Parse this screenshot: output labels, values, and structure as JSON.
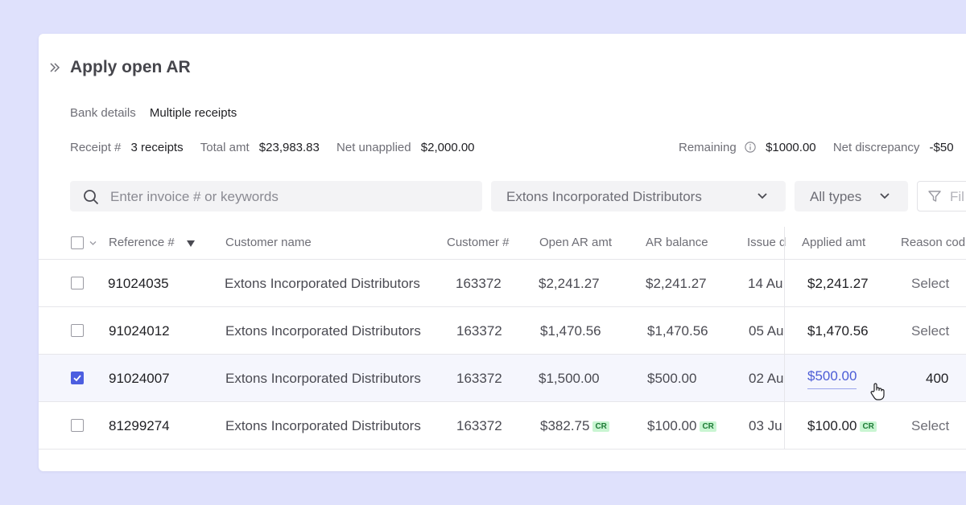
{
  "title": "Apply open AR",
  "bank": {
    "label": "Bank details",
    "value": "Multiple receipts"
  },
  "summary": {
    "receipt_label": "Receipt #",
    "receipt_value": "3 receipts",
    "total_label": "Total amt",
    "total_value": "$23,983.83",
    "unapplied_label": "Net unapplied",
    "unapplied_value": "$2,000.00",
    "remaining_label": "Remaining",
    "remaining_value": "$1000.00",
    "discrepancy_label": "Net discrepancy",
    "discrepancy_value": "-$50"
  },
  "search": {
    "placeholder": "Enter invoice # or keywords"
  },
  "filters": {
    "customer": "Extons Incorporated Distributors",
    "types": "All types",
    "filter_label": "Fil"
  },
  "table": {
    "headers": {
      "reference": "Reference #",
      "customer": "Customer name",
      "customer_no": "Customer #",
      "open_ar": "Open AR amt",
      "ar_balance": "AR balance",
      "issue": "Issue d",
      "applied": "Applied amt",
      "reason": "Reason cod"
    },
    "rows": [
      {
        "ref": "91024035",
        "customer": "Extons Incorporated Distributors",
        "cust_no": "163372",
        "open_ar": "$2,241.27",
        "open_ar_badge": "",
        "ar_balance": "$2,241.27",
        "ar_balance_badge": "",
        "issue": "14 Au",
        "applied": "$2,241.27",
        "applied_badge": "",
        "reason": "Select",
        "checked": false
      },
      {
        "ref": "91024012",
        "customer": "Extons Incorporated Distributors",
        "cust_no": "163372",
        "open_ar": "$1,470.56",
        "open_ar_badge": "",
        "ar_balance": "$1,470.56",
        "ar_balance_badge": "",
        "issue": "05 Au",
        "applied": "$1,470.56",
        "applied_badge": "",
        "reason": "Select",
        "checked": false
      },
      {
        "ref": "91024007",
        "customer": "Extons Incorporated Distributors",
        "cust_no": "163372",
        "open_ar": "$1,500.00",
        "open_ar_badge": "",
        "ar_balance": "$500.00",
        "ar_balance_badge": "",
        "issue": "02 Au",
        "applied": "$500.00",
        "applied_badge": "",
        "reason": "400",
        "checked": true
      },
      {
        "ref": "81299274",
        "customer": "Extons Incorporated Distributors",
        "cust_no": "163372",
        "open_ar": "$382.75",
        "open_ar_badge": "CR",
        "ar_balance": "$100.00",
        "ar_balance_badge": "CR",
        "issue": "03 Ju",
        "applied": "$100.00",
        "applied_badge": "CR",
        "reason": "Select",
        "checked": false
      }
    ]
  },
  "colors": {
    "background": "#dfe1fc",
    "accent": "#4c5ee0",
    "link": "#4b5cd6",
    "credit_badge_bg": "#c9f5d2",
    "credit_badge_text": "#1e7a36"
  }
}
